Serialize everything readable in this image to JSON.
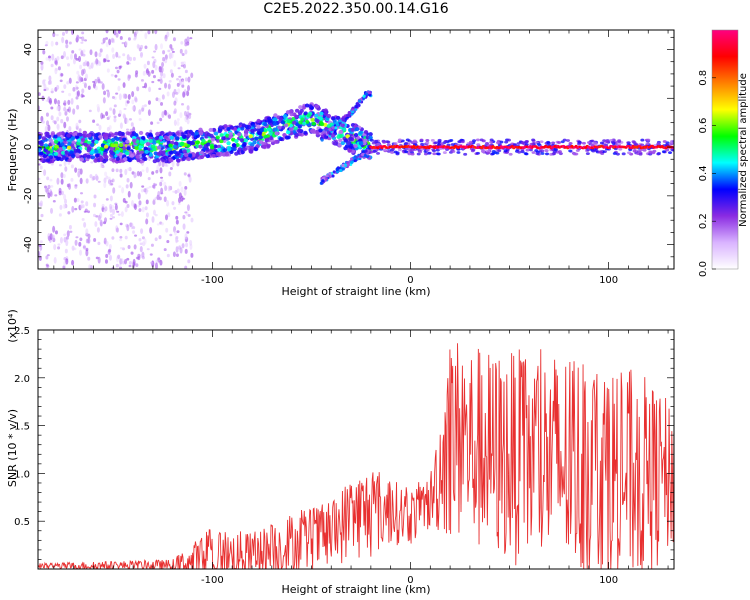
{
  "title": "C2E5.2022.350.00.14.G16",
  "chart_data": [
    {
      "type": "heatmap",
      "name": "spectrogram",
      "xlabel": "Height of straight line (km)",
      "ylabel": "Frequency (Hz)",
      "xlim": [
        -188,
        133
      ],
      "ylim": [
        -50,
        48
      ],
      "xticks": [
        -100,
        0,
        100
      ],
      "yticks": [
        -40,
        -20,
        0,
        20,
        40
      ],
      "colorbar": {
        "label": "Normalized spectral amplitude",
        "range": [
          0.0,
          1.0
        ],
        "ticks": [
          "0.0",
          "0.2",
          "0.4",
          "0.6",
          "0.8"
        ],
        "colors": [
          "#ffffff",
          "#d9b3ff",
          "#8a2be2",
          "#0000ff",
          "#00ffff",
          "#00ff00",
          "#ffff00",
          "#ff8000",
          "#ff0000",
          "#ff0080"
        ]
      },
      "features": [
        {
          "segment": "noisy_scatter",
          "x": [
            -188,
            -110
          ],
          "frequency_spread": [
            -50,
            48
          ],
          "amplitude": 0.15
        },
        {
          "segment": "main_band_noisy",
          "x": [
            -188,
            -20
          ],
          "center_frequency": [
            [
              -188,
              0
            ],
            [
              -120,
              0
            ],
            [
              -80,
              4
            ],
            [
              -50,
              12
            ],
            [
              -35,
              6
            ],
            [
              -20,
              0
            ]
          ],
          "amplitude": 0.35
        },
        {
          "segment": "branch_up",
          "x": [
            -45,
            -20
          ],
          "frequency": [
            [
              -45,
              3
            ],
            [
              -30,
              14
            ],
            [
              -22,
              22
            ]
          ]
        },
        {
          "segment": "branch_down",
          "x": [
            -45,
            -20
          ],
          "frequency": [
            [
              -45,
              -14
            ],
            [
              -30,
              -6
            ],
            [
              -20,
              -1
            ]
          ]
        },
        {
          "segment": "steady_line",
          "x": [
            -20,
            133
          ],
          "frequency": 0,
          "amplitude": 1.0
        }
      ]
    },
    {
      "type": "line",
      "name": "snr",
      "xlabel": "Height of straight line (km)",
      "ylabel": "SNR (10 * v/v)",
      "y_multiplier": "(x10⁴)",
      "xlim": [
        -188,
        133
      ],
      "ylim": [
        0,
        2.5
      ],
      "xticks": [
        -100,
        0,
        100
      ],
      "yticks": [
        0.5,
        1.0,
        1.5,
        2.0,
        2.5
      ],
      "series_color": "#e83030",
      "envelope": {
        "x": [
          -188,
          -120,
          -100,
          -80,
          -60,
          -40,
          -30,
          -20,
          -10,
          0,
          10,
          20,
          30,
          40,
          60,
          80,
          100,
          120,
          133
        ],
        "y_mean": [
          0.03,
          0.04,
          0.1,
          0.15,
          0.25,
          0.35,
          0.55,
          0.6,
          0.6,
          0.55,
          0.7,
          1.4,
          1.3,
          1.2,
          1.15,
          1.1,
          1.0,
          0.95,
          0.95
        ],
        "y_peak": [
          0.06,
          0.1,
          0.45,
          0.38,
          0.6,
          0.7,
          1.0,
          1.1,
          0.95,
          0.85,
          1.0,
          2.5,
          2.4,
          2.3,
          2.3,
          2.3,
          2.2,
          2.0,
          1.7
        ]
      }
    }
  ]
}
